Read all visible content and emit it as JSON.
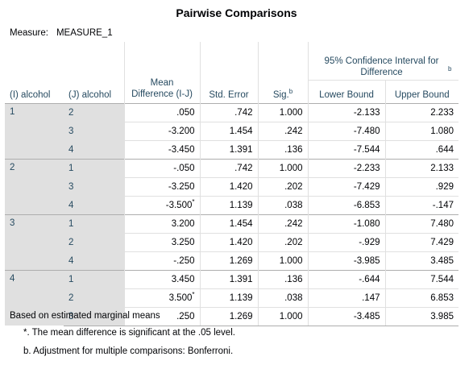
{
  "title": "Pairwise Comparisons",
  "measure_label": "Measure:",
  "measure_value": "MEASURE_1",
  "headers": {
    "i": "(I) alcohol",
    "j": "(J) alcohol",
    "mean_diff": "Mean Difference (I-J)",
    "std_error": "Std. Error",
    "sig": "Sig.",
    "sig_sup": "b",
    "ci_group": "95% Confidence Interval for Difference",
    "ci_group_sup": "b",
    "lower": "Lower Bound",
    "upper": "Upper Bound"
  },
  "groups": [
    {
      "i": "1",
      "rows": [
        {
          "j": "2",
          "md": ".050",
          "sup": "",
          "se": ".742",
          "sig": "1.000",
          "lb": "-2.133",
          "ub": "2.233"
        },
        {
          "j": "3",
          "md": "-3.200",
          "sup": "",
          "se": "1.454",
          "sig": ".242",
          "lb": "-7.480",
          "ub": "1.080"
        },
        {
          "j": "4",
          "md": "-3.450",
          "sup": "",
          "se": "1.391",
          "sig": ".136",
          "lb": "-7.544",
          "ub": ".644"
        }
      ]
    },
    {
      "i": "2",
      "rows": [
        {
          "j": "1",
          "md": "-.050",
          "sup": "",
          "se": ".742",
          "sig": "1.000",
          "lb": "-2.233",
          "ub": "2.133"
        },
        {
          "j": "3",
          "md": "-3.250",
          "sup": "",
          "se": "1.420",
          "sig": ".202",
          "lb": "-7.429",
          "ub": ".929"
        },
        {
          "j": "4",
          "md": "-3.500",
          "sup": "*",
          "se": "1.139",
          "sig": ".038",
          "lb": "-6.853",
          "ub": "-.147"
        }
      ]
    },
    {
      "i": "3",
      "rows": [
        {
          "j": "1",
          "md": "3.200",
          "sup": "",
          "se": "1.454",
          "sig": ".242",
          "lb": "-1.080",
          "ub": "7.480"
        },
        {
          "j": "2",
          "md": "3.250",
          "sup": "",
          "se": "1.420",
          "sig": ".202",
          "lb": "-.929",
          "ub": "7.429"
        },
        {
          "j": "4",
          "md": "-.250",
          "sup": "",
          "se": "1.269",
          "sig": "1.000",
          "lb": "-3.985",
          "ub": "3.485"
        }
      ]
    },
    {
      "i": "4",
      "rows": [
        {
          "j": "1",
          "md": "3.450",
          "sup": "",
          "se": "1.391",
          "sig": ".136",
          "lb": "-.644",
          "ub": "7.544"
        },
        {
          "j": "2",
          "md": "3.500",
          "sup": "*",
          "se": "1.139",
          "sig": ".038",
          "lb": ".147",
          "ub": "6.853"
        },
        {
          "j": "3",
          "md": ".250",
          "sup": "",
          "se": "1.269",
          "sig": "1.000",
          "lb": "-3.485",
          "ub": "3.985"
        }
      ]
    }
  ],
  "footnotes": [
    "Based on estimated marginal means",
    "*. The mean difference is significant at the .05 level.",
    "b. Adjustment for multiple comparisons: Bonferroni."
  ],
  "colors": {
    "header_text": "#264a60",
    "label_bg": "#e0e0e0",
    "border": "#aeaeae"
  }
}
